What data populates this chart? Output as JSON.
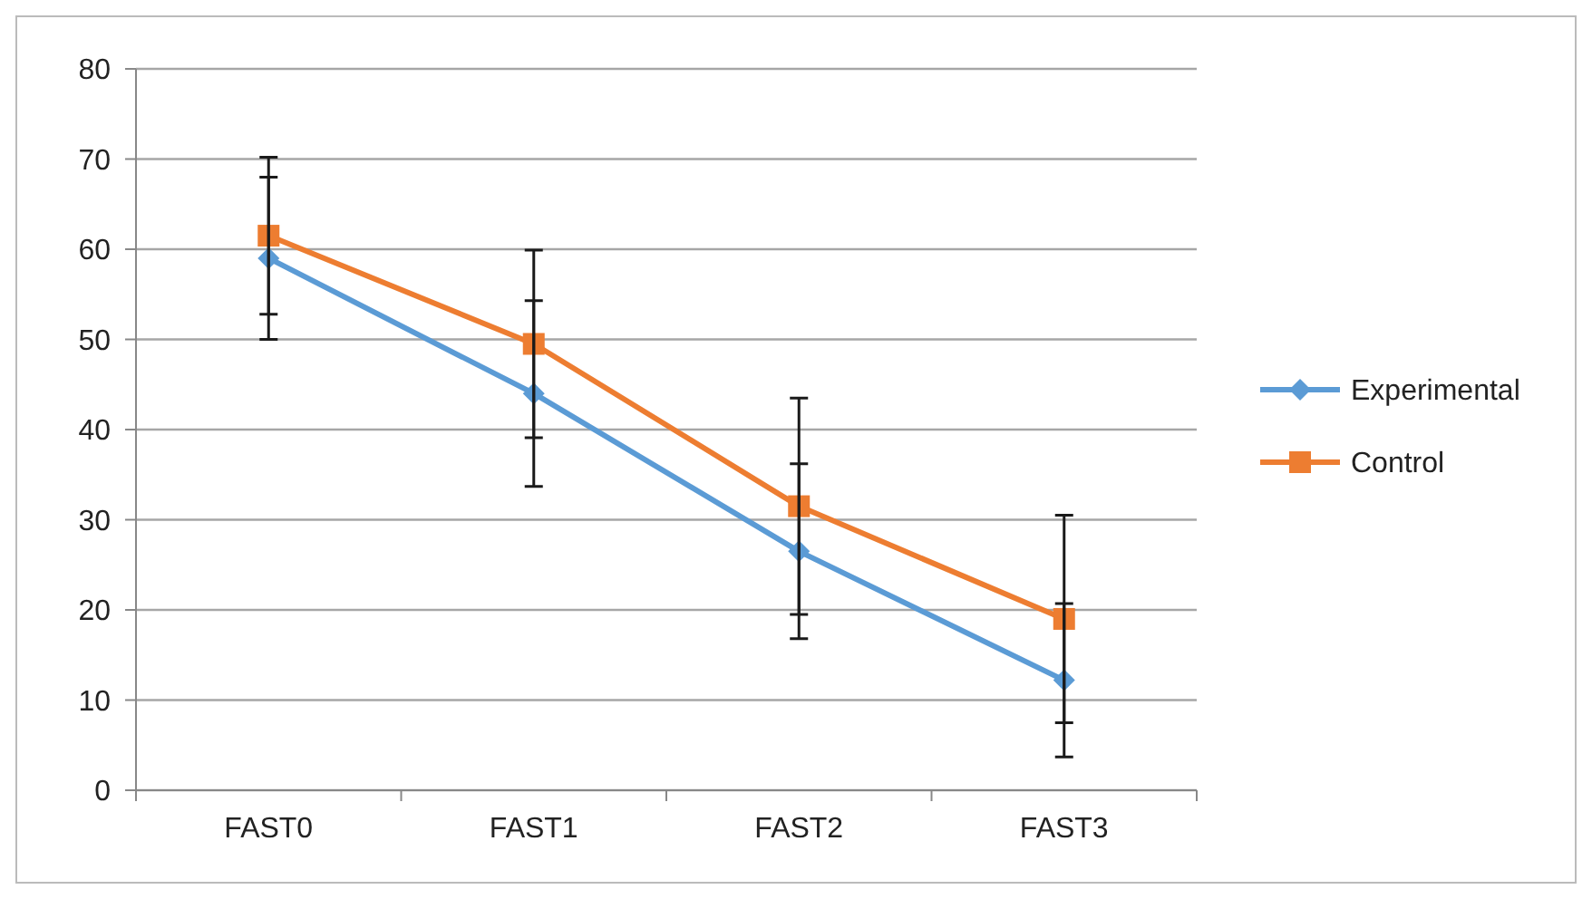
{
  "chart_data": {
    "type": "line",
    "categories": [
      "FAST0",
      "FAST1",
      "FAST2",
      "FAST3"
    ],
    "series": [
      {
        "name": "Experimental",
        "color": "#5b9bd5",
        "marker": "diamond",
        "values": [
          59,
          44,
          26.5,
          12.2
        ],
        "errors": [
          9,
          10.3,
          9.7,
          8.5
        ]
      },
      {
        "name": "Control",
        "color": "#ed7d31",
        "marker": "square",
        "values": [
          61.5,
          49.5,
          31.5,
          19
        ],
        "errors": [
          8.7,
          10.4,
          12,
          11.5
        ]
      }
    ],
    "ylim": [
      0,
      80
    ],
    "yticks": [
      0,
      10,
      20,
      30,
      40,
      50,
      60,
      70,
      80
    ],
    "grid": "y",
    "legend": "right"
  }
}
